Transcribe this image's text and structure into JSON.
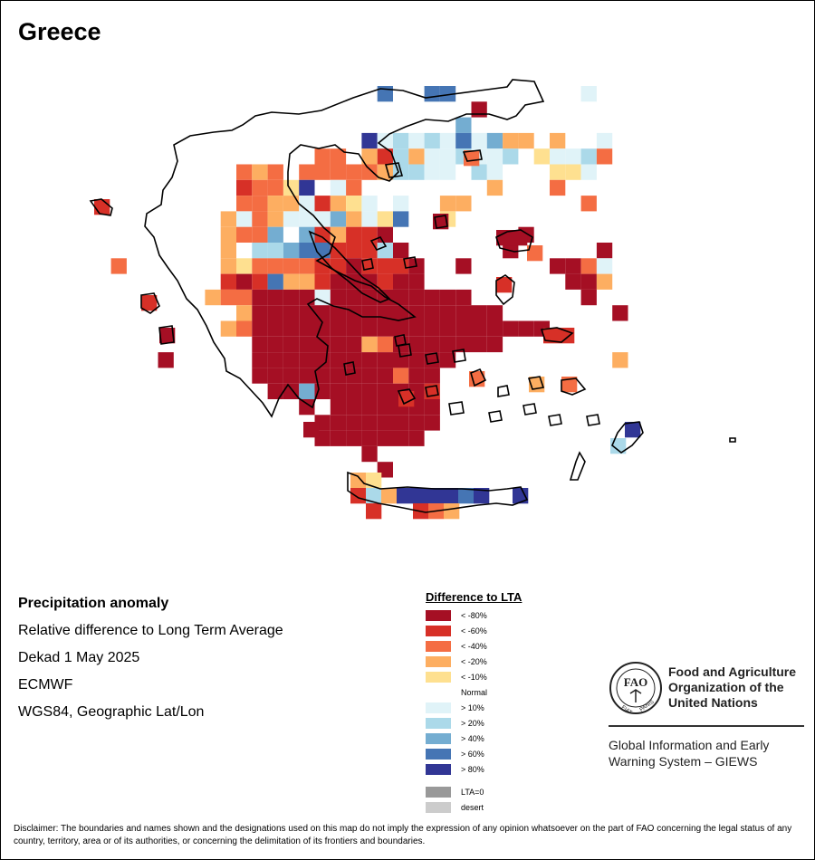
{
  "title": "Greece",
  "info": {
    "heading": "Precipitation anomaly",
    "line1": "Relative difference to Long Term Average",
    "line2": "Dekad 1 May 2025",
    "line3": "ECMWF",
    "line4": "WGS84, Geographic Lat/Lon"
  },
  "legend": {
    "title": "Difference to LTA",
    "items": [
      {
        "label": "< -80%",
        "color": "#a50f24"
      },
      {
        "label": "< -60%",
        "color": "#d73027"
      },
      {
        "label": "< -40%",
        "color": "#f46d43"
      },
      {
        "label": "< -20%",
        "color": "#fdae61"
      },
      {
        "label": "< -10%",
        "color": "#fee090"
      },
      {
        "label": "Normal",
        "color": "#ffffff"
      },
      {
        "label": "> 10%",
        "color": "#e0f3f8"
      },
      {
        "label": "> 20%",
        "color": "#abd9e9"
      },
      {
        "label": "> 40%",
        "color": "#74add1"
      },
      {
        "label": "> 60%",
        "color": "#4575b4"
      },
      {
        "label": "> 80%",
        "color": "#313695"
      }
    ],
    "extra": [
      {
        "label": "LTA=0",
        "color": "#999999"
      },
      {
        "label": "desert",
        "color": "#cccccc"
      }
    ]
  },
  "fao": {
    "name_line1": "Food and Agriculture",
    "name_line2": "Organization of the",
    "name_line3": "United Nations",
    "logo_text": "FAO",
    "logo_motto_left": "FIAT",
    "logo_motto_right": "PANIS",
    "giews_line1": "Global Information and Early",
    "giews_line2": "Warning System – GIEWS"
  },
  "disclaimer": "Disclaimer: The boundaries and names shown and the designations used on this map do not imply the expression of any opinion whatsoever on the part of FAO concerning the legal status of any country, territory, area or of its authorities, or concerning the delimitation of its frontiers and boundaries."
}
